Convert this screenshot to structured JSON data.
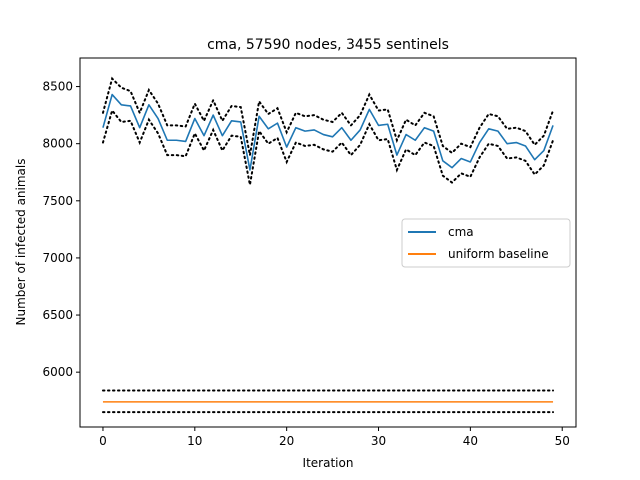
{
  "chart_data": {
    "type": "line",
    "title": "cma, 57590 nodes, 3455 sentinels",
    "xlabel": "Iteration",
    "ylabel": "Number of infected animals",
    "xlim": [
      -2.5,
      51.5
    ],
    "ylim": [
      5520,
      8750
    ],
    "xticks": [
      0,
      10,
      20,
      30,
      40,
      50
    ],
    "yticks": [
      6000,
      6500,
      7000,
      7500,
      8000,
      8500
    ],
    "grid": false,
    "legend_position": "center-right",
    "x": [
      0,
      1,
      2,
      3,
      4,
      5,
      6,
      7,
      8,
      9,
      10,
      11,
      12,
      13,
      14,
      15,
      16,
      17,
      18,
      19,
      20,
      21,
      22,
      23,
      24,
      25,
      26,
      27,
      28,
      29,
      30,
      31,
      32,
      33,
      34,
      35,
      36,
      37,
      38,
      39,
      40,
      41,
      42,
      43,
      44,
      45,
      46,
      47,
      48,
      49
    ],
    "series": [
      {
        "name": "cma",
        "color": "#1f77b4",
        "values": [
          8140,
          8430,
          8340,
          8330,
          8140,
          8340,
          8220,
          8030,
          8030,
          8020,
          8220,
          8070,
          8250,
          8070,
          8200,
          8190,
          7770,
          8240,
          8130,
          8180,
          7970,
          8140,
          8110,
          8120,
          8080,
          8060,
          8140,
          8030,
          8120,
          8300,
          8160,
          8170,
          7900,
          8080,
          8030,
          8140,
          8110,
          7850,
          7790,
          7870,
          7840,
          8010,
          8130,
          8110,
          8000,
          8010,
          7980,
          7860,
          7940,
          8160
        ]
      },
      {
        "name": "uniform baseline",
        "color": "#ff7f0e",
        "values": [
          5740,
          5740,
          5740,
          5740,
          5740,
          5740,
          5740,
          5740,
          5740,
          5740,
          5740,
          5740,
          5740,
          5740,
          5740,
          5740,
          5740,
          5740,
          5740,
          5740,
          5740,
          5740,
          5740,
          5740,
          5740,
          5740,
          5740,
          5740,
          5740,
          5740,
          5740,
          5740,
          5740,
          5740,
          5740,
          5740,
          5740,
          5740,
          5740,
          5740,
          5740,
          5740,
          5740,
          5740,
          5740,
          5740,
          5740,
          5740,
          5740,
          5740
        ]
      }
    ],
    "bands": [
      {
        "of": "cma",
        "style": "dotted",
        "color": "#000000",
        "upper": [
          8270,
          8570,
          8490,
          8460,
          8270,
          8470,
          8350,
          8160,
          8160,
          8150,
          8350,
          8200,
          8380,
          8200,
          8330,
          8320,
          7900,
          8370,
          8260,
          8310,
          8100,
          8270,
          8240,
          8250,
          8210,
          8190,
          8270,
          8160,
          8250,
          8430,
          8290,
          8300,
          8030,
          8210,
          8160,
          8270,
          8240,
          7980,
          7920,
          8000,
          7970,
          8140,
          8260,
          8240,
          8130,
          8140,
          8110,
          7990,
          8070,
          8290
        ],
        "lower": [
          8010,
          8290,
          8190,
          8200,
          8010,
          8210,
          8090,
          7900,
          7900,
          7890,
          8090,
          7940,
          8120,
          7940,
          8070,
          8060,
          7640,
          8110,
          8000,
          8050,
          7840,
          8010,
          7980,
          7990,
          7950,
          7930,
          8010,
          7900,
          7990,
          8170,
          8030,
          8040,
          7770,
          7950,
          7900,
          8010,
          7980,
          7720,
          7660,
          7740,
          7710,
          7880,
          8000,
          7980,
          7870,
          7880,
          7850,
          7730,
          7810,
          8030
        ]
      },
      {
        "of": "uniform baseline",
        "style": "dotted",
        "color": "#000000",
        "upper": [
          5840,
          5840,
          5840,
          5840,
          5840,
          5840,
          5840,
          5840,
          5840,
          5840,
          5840,
          5840,
          5840,
          5840,
          5840,
          5840,
          5840,
          5840,
          5840,
          5840,
          5840,
          5840,
          5840,
          5840,
          5840,
          5840,
          5840,
          5840,
          5840,
          5840,
          5840,
          5840,
          5840,
          5840,
          5840,
          5840,
          5840,
          5840,
          5840,
          5840,
          5840,
          5840,
          5840,
          5840,
          5840,
          5840,
          5840,
          5840,
          5840,
          5840
        ],
        "lower": [
          5650,
          5650,
          5650,
          5650,
          5650,
          5650,
          5650,
          5650,
          5650,
          5650,
          5650,
          5650,
          5650,
          5650,
          5650,
          5650,
          5650,
          5650,
          5650,
          5650,
          5650,
          5650,
          5650,
          5650,
          5650,
          5650,
          5650,
          5650,
          5650,
          5650,
          5650,
          5650,
          5650,
          5650,
          5650,
          5650,
          5650,
          5650,
          5650,
          5650,
          5650,
          5650,
          5650,
          5650,
          5650,
          5650,
          5650,
          5650,
          5650,
          5650
        ]
      }
    ]
  }
}
